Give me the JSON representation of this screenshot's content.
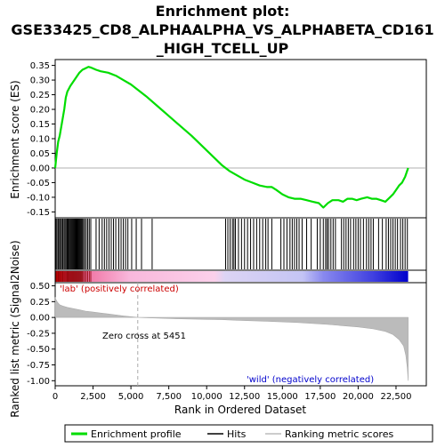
{
  "title_lines": [
    "Enrichment plot:",
    "GSE33425_CD8_ALPHAALPHA_VS_ALPHABETA_CD161",
    "_HIGH_TCELL_UP"
  ],
  "es_axis_label": "Enrichment score (ES)",
  "rank_axis_label": "Ranked list metric (Signal2Noise)",
  "x_axis_label": "Rank in Ordered Dataset",
  "pos_label": "'lab' (positively correlated)",
  "neg_label": "'wild' (negatively correlated)",
  "zero_cross_label": "Zero cross at 5451",
  "legend": {
    "enrichment": "Enrichment profile",
    "hits": "Hits",
    "ranking": "Ranking metric scores"
  },
  "colors": {
    "enrichment": "#00dd00",
    "hits": "#000000",
    "metric": "#bbbbbb",
    "pos": "#ff0000",
    "neg": "#0000ff"
  },
  "chart_data": {
    "type": "line",
    "title": "Enrichment plot: GSE33425_CD8_ALPHAALPHA_VS_ALPHABETA_CD161_HIGH_TCELL_UP",
    "xlabel": "Rank in Ordered Dataset",
    "n_genes": 23300,
    "zero_cross": 5451,
    "xlim": [
      0,
      24500
    ],
    "x_ticks": [
      0,
      2500,
      5000,
      7500,
      10000,
      12500,
      15000,
      17500,
      20000,
      22500
    ],
    "x_tick_labels": [
      "0",
      "2,500",
      "5,000",
      "7,500",
      "10,000",
      "12,500",
      "15,000",
      "17,500",
      "20,000",
      "22,500"
    ],
    "es": {
      "ylabel": "Enrichment score (ES)",
      "ylim": [
        -0.17,
        0.37
      ],
      "y_ticks": [
        -0.15,
        -0.1,
        -0.05,
        0.0,
        0.05,
        0.1,
        0.15,
        0.2,
        0.25,
        0.3,
        0.35
      ],
      "y_tick_labels": [
        "-0.15",
        "-0.10",
        "-0.05",
        "0.00",
        "0.05",
        "0.10",
        "0.15",
        "0.20",
        "0.25",
        "0.30",
        "0.35"
      ],
      "x": [
        0,
        100,
        200,
        300,
        400,
        500,
        600,
        700,
        800,
        900,
        1000,
        1200,
        1400,
        1600,
        1800,
        2000,
        2200,
        2400,
        2700,
        3000,
        3500,
        4000,
        4500,
        5000,
        5500,
        6000,
        7000,
        8000,
        9000,
        10000,
        11000,
        11500,
        12000,
        12500,
        13000,
        13500,
        14000,
        14300,
        14600,
        15000,
        15400,
        15800,
        16200,
        16600,
        17000,
        17400,
        17700,
        18000,
        18300,
        18700,
        19000,
        19300,
        19600,
        19900,
        20200,
        20600,
        20900,
        21200,
        21500,
        21800,
        22100,
        22300,
        22500,
        22700,
        22900,
        23100,
        23300
      ],
      "y": [
        0.0,
        0.05,
        0.09,
        0.11,
        0.14,
        0.17,
        0.2,
        0.24,
        0.26,
        0.27,
        0.28,
        0.295,
        0.31,
        0.325,
        0.335,
        0.34,
        0.345,
        0.342,
        0.335,
        0.33,
        0.325,
        0.315,
        0.3,
        0.285,
        0.265,
        0.245,
        0.2,
        0.155,
        0.11,
        0.06,
        0.01,
        -0.01,
        -0.025,
        -0.04,
        -0.05,
        -0.06,
        -0.065,
        -0.065,
        -0.075,
        -0.09,
        -0.1,
        -0.105,
        -0.105,
        -0.11,
        -0.115,
        -0.12,
        -0.135,
        -0.12,
        -0.11,
        -0.11,
        -0.115,
        -0.105,
        -0.105,
        -0.11,
        -0.105,
        -0.1,
        -0.105,
        -0.105,
        -0.11,
        -0.115,
        -0.1,
        -0.09,
        -0.075,
        -0.06,
        -0.05,
        -0.03,
        0.0
      ]
    },
    "metric": {
      "ylabel": "Ranked list metric (Signal2Noise)",
      "ylim": [
        -1.08,
        0.55
      ],
      "y_ticks": [
        -1.0,
        -0.75,
        -0.5,
        -0.25,
        0.0,
        0.25,
        0.5
      ],
      "y_tick_labels": [
        "-1.00",
        "-0.75",
        "-0.50",
        "-0.25",
        "0.00",
        "0.25",
        "0.50"
      ],
      "x": [
        0,
        50,
        150,
        300,
        500,
        800,
        1200,
        1600,
        2000,
        2500,
        3000,
        3500,
        4000,
        4500,
        5000,
        5451,
        6000,
        8000,
        10000,
        11000,
        12000,
        14000,
        16000,
        18000,
        19000,
        20000,
        21000,
        21800,
        22300,
        22700,
        23000,
        23150,
        23250,
        23300
      ],
      "y": [
        0.32,
        0.28,
        0.24,
        0.2,
        0.18,
        0.16,
        0.14,
        0.12,
        0.1,
        0.085,
        0.07,
        0.055,
        0.04,
        0.025,
        0.012,
        0.0,
        -0.005,
        -0.02,
        -0.03,
        -0.035,
        -0.045,
        -0.06,
        -0.08,
        -0.11,
        -0.13,
        -0.15,
        -0.18,
        -0.22,
        -0.27,
        -0.35,
        -0.45,
        -0.6,
        -0.8,
        -1.0
      ]
    },
    "hits": [
      50,
      120,
      200,
      280,
      350,
      420,
      500,
      580,
      650,
      720,
      790,
      850,
      900,
      960,
      1020,
      1080,
      1140,
      1200,
      1260,
      1320,
      1380,
      1440,
      1500,
      1560,
      1620,
      1680,
      1740,
      1800,
      1870,
      1950,
      2050,
      2150,
      2250,
      2350,
      2700,
      2900,
      3100,
      3250,
      3400,
      3550,
      3700,
      3850,
      4000,
      4200,
      4350,
      4500,
      4650,
      4800,
      5050,
      5350,
      5700,
      6400,
      11250,
      11400,
      11550,
      11700,
      11800,
      11900,
      12100,
      12300,
      12500,
      12700,
      12900,
      13100,
      13300,
      13500,
      13700,
      13900,
      14050,
      14300,
      14900,
      15100,
      15300,
      15500,
      15650,
      15800,
      15950,
      16100,
      16300,
      16600,
      16900,
      17300,
      17500,
      17700,
      17850,
      17950,
      18050,
      18200,
      18350,
      18500,
      18900,
      19050,
      19200,
      19350,
      19500,
      19700,
      19850,
      20000,
      20150,
      20350,
      20550,
      20700,
      20850,
      21000,
      21350,
      21600,
      21850,
      22000,
      22150,
      22300,
      22450,
      22600,
      22800,
      22950,
      23100,
      23250
    ]
  }
}
